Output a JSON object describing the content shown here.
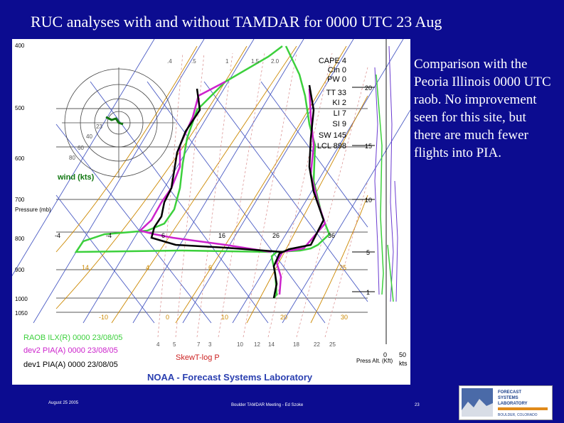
{
  "slide": {
    "title": "RUC analyses with and without TAMDAR for 0000 UTC 23 Aug",
    "side_text": "Comparison with the Peoria Illinois 0000 UTC raob. No improvement seen for this site, but there are much fewer flights into PIA.",
    "footer_date": "August 25 2005",
    "footer_center": "Boulder TAMDAR Meeting - Ed Szoke",
    "page_number": "23"
  },
  "skewt": {
    "pressure_labels": [
      "400",
      "500",
      "600",
      "700",
      "800",
      "900",
      "1000",
      "1050"
    ],
    "pressure_axis_label": "Pressure (mb)",
    "temp_labels_bottom": [
      "-10",
      "0",
      "10",
      "20",
      "30"
    ],
    "temp_labels_upper": [
      "-4",
      "-4",
      "6",
      "16",
      "26",
      "36"
    ],
    "mixing_ratio_labels": [
      "4",
      "5",
      "7",
      "3",
      "10",
      "12",
      "14",
      "18",
      "22",
      "25"
    ],
    "mixing_ratio_top": [
      ".4",
      ".5",
      "1",
      "1.5",
      "2.0"
    ],
    "theta_labels": [
      "14",
      "4",
      "6",
      "25"
    ],
    "wind_label": "wind (kts)",
    "wind_speed_labels": [
      "23",
      "40",
      "60",
      "80"
    ],
    "stats": [
      "CAPE 4",
      "CIn 0",
      "PW 0",
      "TT 33",
      "KI 2",
      "LI 7",
      "SI 9",
      "SW 145",
      "LCL 898"
    ],
    "press_alt_labels": [
      "20",
      "15",
      "10",
      "5",
      "1"
    ],
    "press_alt_axis": [
      "0",
      "50"
    ],
    "press_alt_label": "Press Alt. (Kft)",
    "kts_label": "kts",
    "legend": [
      {
        "text": "RAOB ILX(R) 0000 23/08/05",
        "color": "#3cd03c"
      },
      {
        "text": "dev2 PIA(A) 0000 23/08/05",
        "color": "#cc22cc"
      },
      {
        "text": "dev1 PIA(A) 0000 23/08/05",
        "color": "#000000"
      }
    ],
    "skewt_label": "SkewT-log P",
    "lab_label": "NOAA - Forecast Systems Laboratory"
  },
  "logo": {
    "line1": "FORECAST",
    "line2": "SYSTEMS",
    "line3": "LABORATORY",
    "line4": "BOULDER, COLORADO"
  },
  "colors": {
    "background": "#0c0c90",
    "raob": "#3cd03c",
    "dev2": "#cc22cc",
    "dev1": "#000000",
    "isotherm": "#4b5cc4",
    "dry_adiabat": "#cc8800",
    "mixing_ratio": "#d88a8a",
    "lab_text": "#2a3fb0"
  }
}
